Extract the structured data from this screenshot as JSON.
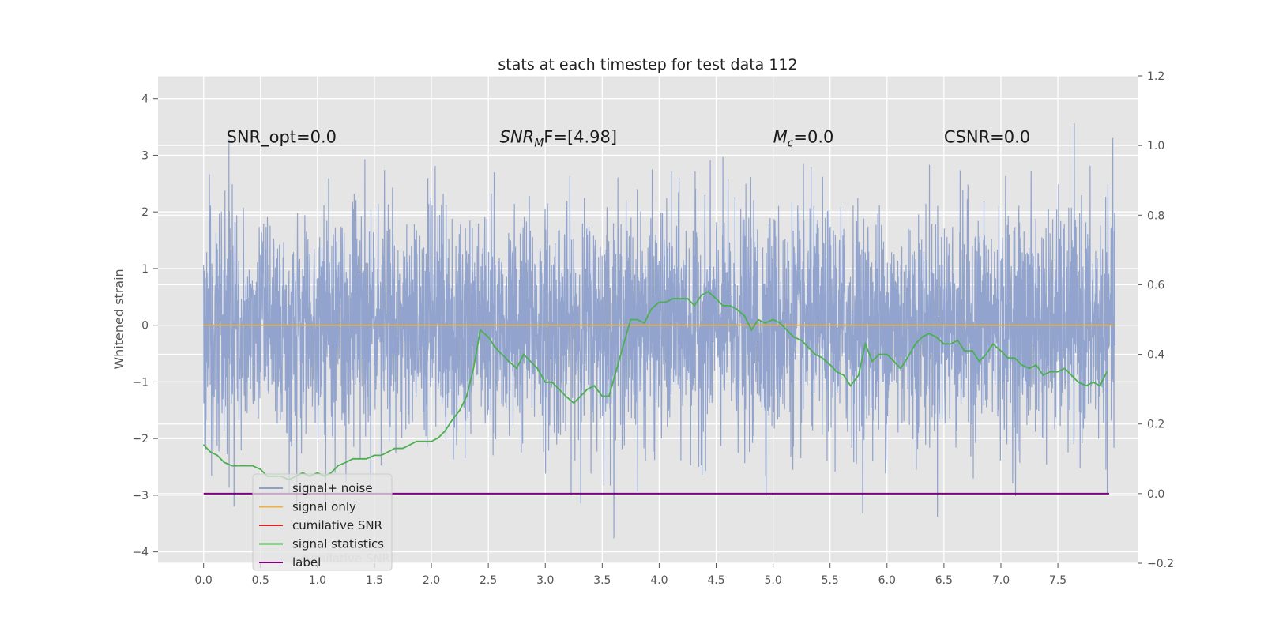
{
  "chart_data": {
    "type": "line",
    "title": "stats at each timestep for test data 112",
    "xlabel": "",
    "ylabel": "Whitened strain",
    "xlim": [
      -0.4,
      8.2
    ],
    "ylim": [
      -4.2,
      4.4
    ],
    "y2lim": [
      -0.2,
      1.2
    ],
    "xticks": [
      0.0,
      0.5,
      1.0,
      1.5,
      2.0,
      2.5,
      3.0,
      3.5,
      4.0,
      4.5,
      5.0,
      5.5,
      6.0,
      6.5,
      7.0,
      7.5
    ],
    "yticks": [
      -4,
      -3,
      -2,
      -1,
      0,
      1,
      2,
      3,
      4
    ],
    "y2ticks": [
      -0.2,
      0.0,
      0.2,
      0.4,
      0.6,
      0.8,
      1.0,
      1.2
    ],
    "grid": true,
    "legend": "lower-left",
    "annotations": [
      {
        "pre": "SNR_opt=0.0",
        "italic": "",
        "sub": "",
        "post": "",
        "x": 0.2,
        "y": 3.22
      },
      {
        "pre": "",
        "italic": "SNR",
        "sub": "M",
        "post": "F=[4.98]",
        "x": 2.6,
        "y": 3.22
      },
      {
        "pre": "",
        "italic": "M",
        "sub": "c",
        "post": "=0.0",
        "x": 5.0,
        "y": 3.22
      },
      {
        "pre": "CSNR=0.0",
        "italic": "",
        "sub": "",
        "post": "",
        "x": 6.5,
        "y": 3.22
      }
    ],
    "series": [
      {
        "name": "signal+ noise",
        "color": "#8da0cb",
        "axis": "left",
        "kind": "noise",
        "x_start": 0.0,
        "x_end": 8.0,
        "std": 1.0,
        "amplitude_max": 4.05
      },
      {
        "name": "signal only",
        "color": "#f0b040",
        "axis": "left",
        "kind": "constant",
        "value": 0.0,
        "x_start": 0.0,
        "x_end": 8.0
      },
      {
        "name": "cumilative SNR",
        "color": "#d62728",
        "axis": "right",
        "kind": "hidden"
      },
      {
        "name": "signal statistics",
        "color": "#4caf50",
        "axis": "right",
        "kind": "line",
        "x": [
          0.0,
          0.06,
          0.12,
          0.18,
          0.25,
          0.31,
          0.37,
          0.43,
          0.5,
          0.56,
          0.62,
          0.68,
          0.75,
          0.81,
          0.87,
          0.93,
          1.0,
          1.06,
          1.12,
          1.18,
          1.25,
          1.31,
          1.37,
          1.43,
          1.5,
          1.56,
          1.62,
          1.68,
          1.75,
          1.81,
          1.87,
          1.93,
          2.0,
          2.06,
          2.12,
          2.18,
          2.25,
          2.31,
          2.37,
          2.43,
          2.5,
          2.56,
          2.62,
          2.68,
          2.75,
          2.81,
          2.87,
          2.93,
          3.0,
          3.06,
          3.12,
          3.18,
          3.25,
          3.31,
          3.37,
          3.43,
          3.5,
          3.56,
          3.62,
          3.68,
          3.75,
          3.81,
          3.87,
          3.93,
          4.0,
          4.06,
          4.12,
          4.18,
          4.25,
          4.31,
          4.37,
          4.43,
          4.5,
          4.56,
          4.62,
          4.68,
          4.75,
          4.81,
          4.87,
          4.93,
          5.0,
          5.06,
          5.12,
          5.18,
          5.25,
          5.31,
          5.37,
          5.43,
          5.5,
          5.56,
          5.62,
          5.68,
          5.75,
          5.81,
          5.87,
          5.93,
          6.0,
          6.06,
          6.12,
          6.18,
          6.25,
          6.31,
          6.37,
          6.43,
          6.5,
          6.56,
          6.62,
          6.68,
          6.75,
          6.81,
          6.87,
          6.93,
          7.0,
          7.06,
          7.12,
          7.18,
          7.25,
          7.31,
          7.37,
          7.43,
          7.5,
          7.56,
          7.62,
          7.68,
          7.75,
          7.81,
          7.87,
          7.93
        ],
        "values": [
          0.14,
          0.12,
          0.11,
          0.09,
          0.08,
          0.08,
          0.08,
          0.08,
          0.07,
          0.05,
          0.05,
          0.05,
          0.04,
          0.05,
          0.06,
          0.05,
          0.06,
          0.05,
          0.06,
          0.08,
          0.09,
          0.1,
          0.1,
          0.1,
          0.11,
          0.11,
          0.12,
          0.13,
          0.13,
          0.14,
          0.15,
          0.15,
          0.15,
          0.16,
          0.18,
          0.21,
          0.24,
          0.28,
          0.36,
          0.47,
          0.45,
          0.42,
          0.4,
          0.38,
          0.36,
          0.4,
          0.38,
          0.36,
          0.32,
          0.32,
          0.3,
          0.28,
          0.26,
          0.28,
          0.3,
          0.31,
          0.28,
          0.28,
          0.35,
          0.42,
          0.5,
          0.5,
          0.49,
          0.53,
          0.55,
          0.55,
          0.56,
          0.56,
          0.56,
          0.54,
          0.57,
          0.58,
          0.56,
          0.54,
          0.54,
          0.53,
          0.51,
          0.47,
          0.5,
          0.49,
          0.5,
          0.49,
          0.47,
          0.45,
          0.44,
          0.42,
          0.4,
          0.39,
          0.37,
          0.35,
          0.34,
          0.31,
          0.34,
          0.43,
          0.38,
          0.4,
          0.4,
          0.38,
          0.36,
          0.39,
          0.43,
          0.45,
          0.46,
          0.45,
          0.43,
          0.43,
          0.44,
          0.41,
          0.41,
          0.38,
          0.4,
          0.43,
          0.41,
          0.39,
          0.39,
          0.37,
          0.36,
          0.37,
          0.34,
          0.35,
          0.35,
          0.36,
          0.34,
          0.32,
          0.31,
          0.32,
          0.31,
          0.35
        ]
      },
      {
        "name": "label",
        "color": "#800080",
        "axis": "right",
        "kind": "constant",
        "value": 0.0,
        "x_start": 0.0,
        "x_end": 7.95
      }
    ],
    "legend_overlay_text": "cumilative SNR"
  },
  "colors": {
    "plot_background": "#e5e5e5",
    "grid": "#ffffff"
  }
}
